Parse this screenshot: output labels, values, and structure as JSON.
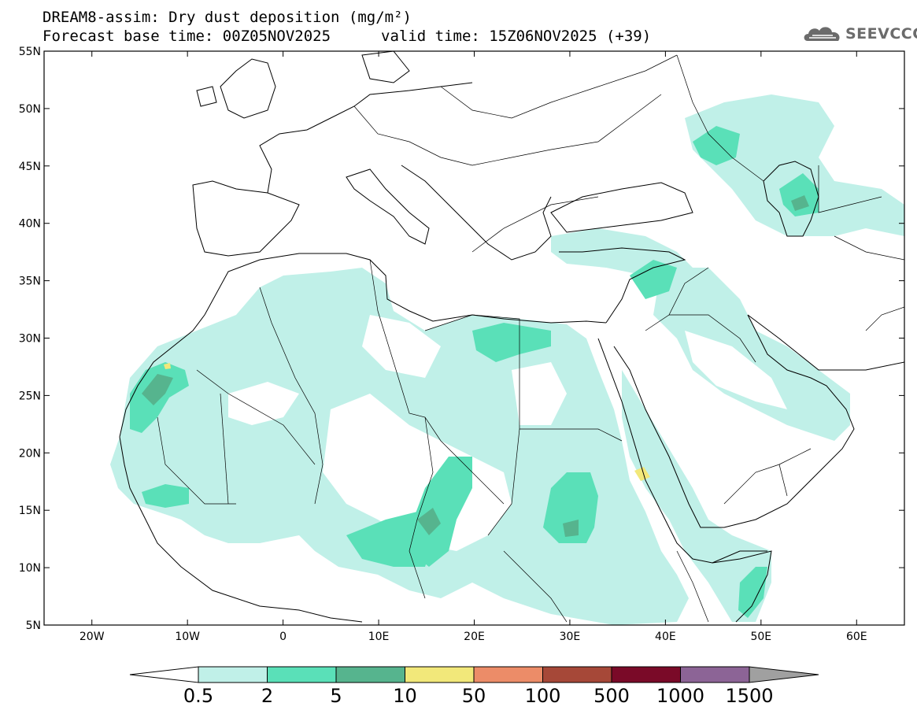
{
  "header": {
    "title_line1": "DREAM8-assim: Dry dust deposition (mg/m²)",
    "forecast_base": "Forecast base time: 00Z05NOV2025",
    "valid_time": "valid time: 15Z06NOV2025 (+39)"
  },
  "logo": {
    "text": "SEEVCCC",
    "icon": "cloud-icon"
  },
  "map": {
    "lon_range": [
      -25,
      65
    ],
    "lat_range": [
      5,
      55
    ],
    "lon_ticks": [
      {
        "value": -20,
        "label": "20W"
      },
      {
        "value": -10,
        "label": "10W"
      },
      {
        "value": 0,
        "label": "0"
      },
      {
        "value": 10,
        "label": "10E"
      },
      {
        "value": 20,
        "label": "20E"
      },
      {
        "value": 30,
        "label": "30E"
      },
      {
        "value": 40,
        "label": "40E"
      },
      {
        "value": 50,
        "label": "50E"
      },
      {
        "value": 60,
        "label": "60E"
      }
    ],
    "lat_ticks": [
      {
        "value": 55,
        "label": "55N"
      },
      {
        "value": 50,
        "label": "50N"
      },
      {
        "value": 45,
        "label": "45N"
      },
      {
        "value": 40,
        "label": "40N"
      },
      {
        "value": 35,
        "label": "35N"
      },
      {
        "value": 30,
        "label": "30N"
      },
      {
        "value": 25,
        "label": "25N"
      },
      {
        "value": 20,
        "label": "20N"
      },
      {
        "value": 15,
        "label": "15N"
      },
      {
        "value": 10,
        "label": "10N"
      },
      {
        "value": 5,
        "label": "5N"
      }
    ]
  },
  "colorbar": {
    "colors": [
      "#ffffff",
      "#c0f0e8",
      "#5ae0b8",
      "#56b48e",
      "#f2e87a",
      "#ec8c68",
      "#a64838",
      "#7a0a28",
      "#8c6496",
      "#a0a0a0"
    ],
    "labels": [
      "0.5",
      "2",
      "5",
      "10",
      "50",
      "100",
      "500",
      "1000",
      "1500"
    ]
  }
}
